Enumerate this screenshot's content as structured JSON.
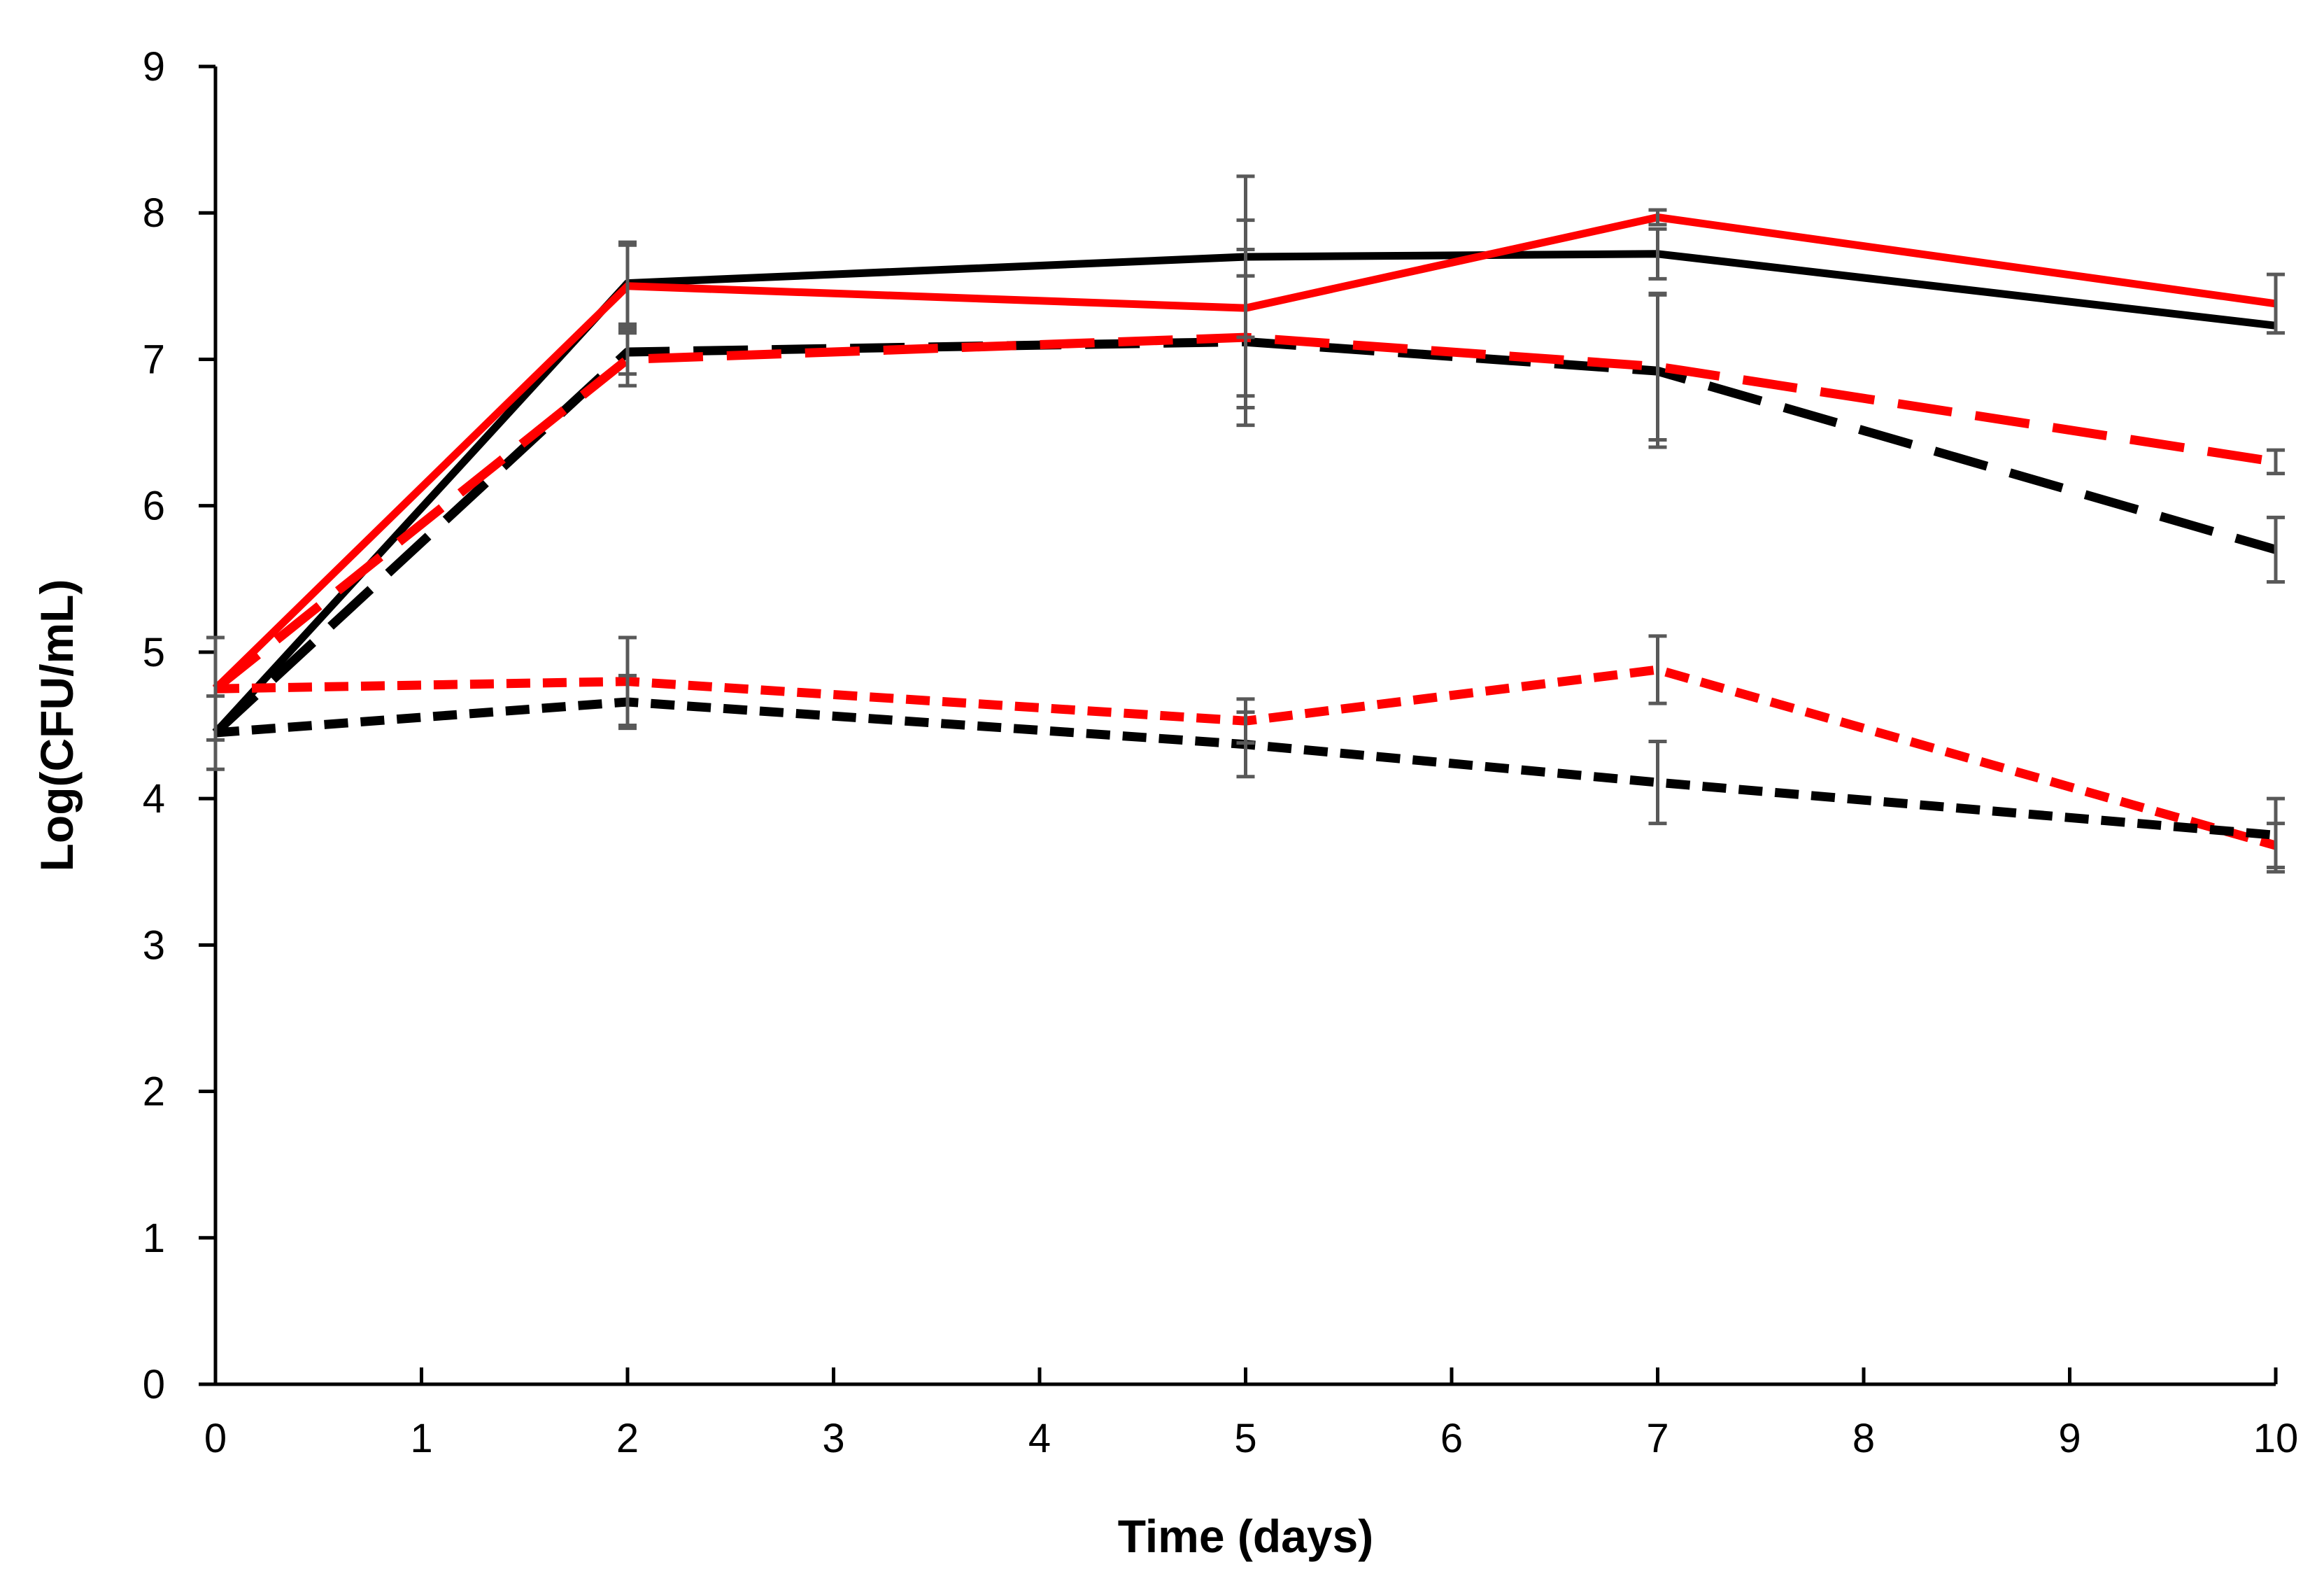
{
  "chart_data": {
    "type": "line",
    "title": "",
    "xlabel": "Time (days)",
    "ylabel": "Log(CFU/mL)",
    "xlim": [
      0,
      10
    ],
    "ylim": [
      0,
      9
    ],
    "x_ticks": [
      0,
      1,
      2,
      3,
      4,
      5,
      6,
      7,
      8,
      9,
      10
    ],
    "y_ticks": [
      0,
      1,
      2,
      3,
      4,
      5,
      6,
      7,
      8,
      9
    ],
    "grid": false,
    "legend": "none",
    "x": [
      0,
      2,
      5,
      7,
      10
    ],
    "series": [
      {
        "name": "black solid",
        "color": "#000000",
        "dash": "solid",
        "values": [
          4.45,
          7.52,
          7.7,
          7.72,
          7.23
        ],
        "errors": [
          0.0,
          0.28,
          0.55,
          0.17,
          0.0
        ]
      },
      {
        "name": "red solid",
        "color": "#ff0000",
        "dash": "solid",
        "values": [
          4.75,
          7.5,
          7.35,
          7.97,
          7.38
        ],
        "errors": [
          0.0,
          0.28,
          0.6,
          0.05,
          0.2
        ]
      },
      {
        "name": "black long-dash",
        "color": "#000000",
        "dash": "long",
        "values": [
          4.45,
          7.05,
          7.12,
          6.92,
          5.7
        ],
        "errors": [
          0.0,
          0.15,
          0.45,
          0.52,
          0.22
        ]
      },
      {
        "name": "red long-dash",
        "color": "#ff0000",
        "dash": "long",
        "values": [
          4.75,
          7.0,
          7.15,
          6.95,
          6.3
        ],
        "errors": [
          0.0,
          0.18,
          0.6,
          0.5,
          0.08
        ]
      },
      {
        "name": "red short-dash",
        "color": "#ff0000",
        "dash": "short",
        "values": [
          4.75,
          4.8,
          4.53,
          4.88,
          3.68
        ],
        "errors": [
          0.35,
          0.3,
          0.15,
          0.23,
          0.15
        ]
      },
      {
        "name": "black short-dash",
        "color": "#000000",
        "dash": "short",
        "values": [
          4.45,
          4.66,
          4.37,
          4.11,
          3.75
        ],
        "errors": [
          0.25,
          0.18,
          0.22,
          0.28,
          0.25
        ]
      }
    ],
    "error_bar_color": "#595959"
  }
}
